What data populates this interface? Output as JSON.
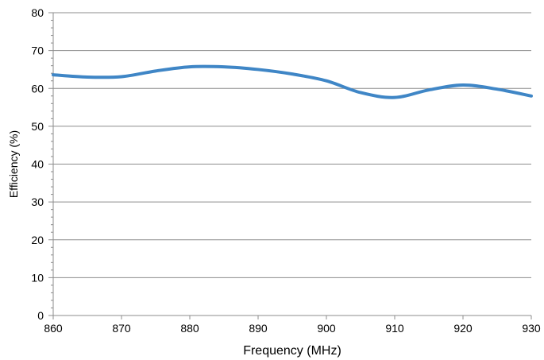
{
  "chart_data": {
    "type": "line",
    "title": "",
    "xlabel": "Frequency (MHz)",
    "ylabel": "Efficiency (%)",
    "xlim": [
      860,
      930
    ],
    "ylim": [
      0,
      80
    ],
    "x_ticks": [
      860,
      870,
      880,
      890,
      900,
      910,
      920,
      930
    ],
    "y_ticks": [
      0,
      10,
      20,
      30,
      40,
      50,
      60,
      70,
      80
    ],
    "grid": "horizontal",
    "legend": "none",
    "series": [
      {
        "color": "#3f86c6",
        "x": [
          860,
          865,
          870,
          875,
          880,
          885,
          890,
          895,
          900,
          905,
          910,
          915,
          920,
          925,
          930
        ],
        "y": [
          63.6,
          63.0,
          63.1,
          64.6,
          65.7,
          65.7,
          65.0,
          63.8,
          62.0,
          58.9,
          57.6,
          59.6,
          60.9,
          59.8,
          58.0
        ]
      }
    ]
  }
}
